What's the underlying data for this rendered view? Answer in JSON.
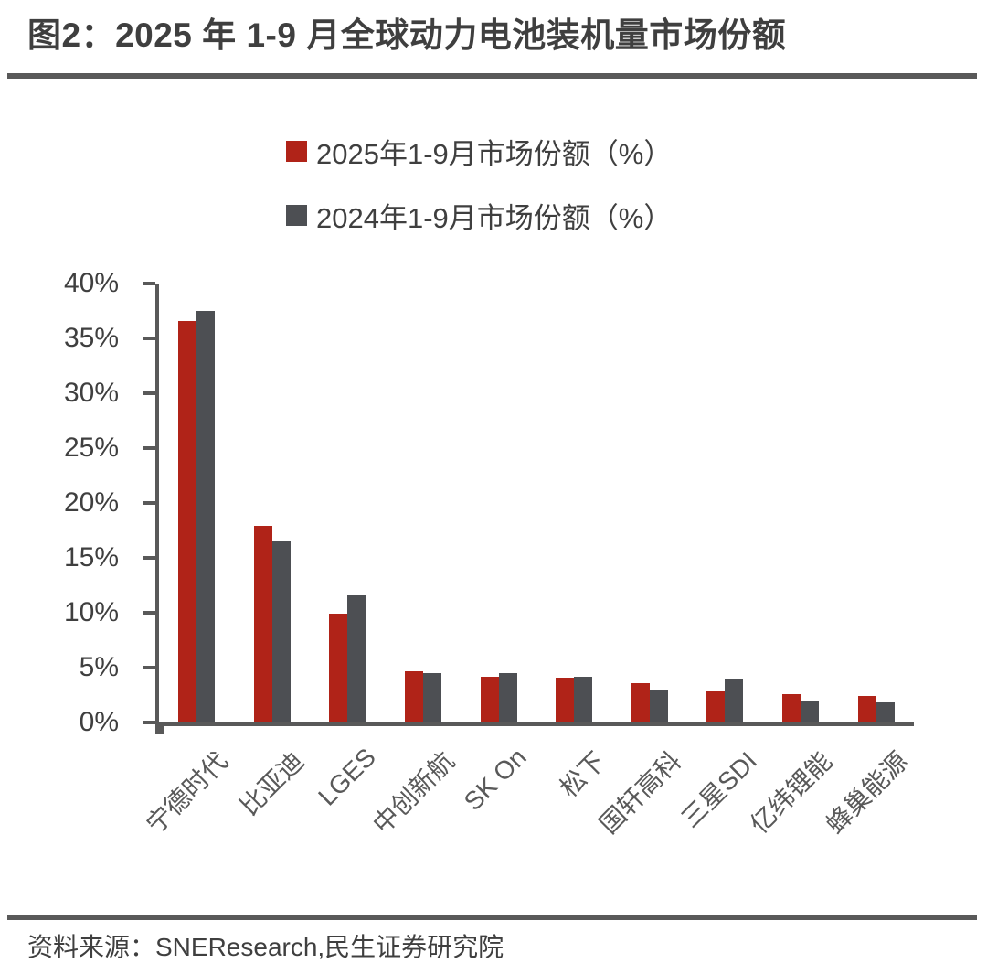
{
  "header": {
    "title": "图2：2025 年 1-9 月全球动力电池装机量市场份额"
  },
  "legend": [
    {
      "label": "2025年1-9月市场份额（%）",
      "color": "#b02318"
    },
    {
      "label": "2024年1-9月市场份额（%）",
      "color": "#4d4f53"
    }
  ],
  "footer": {
    "source": "资料来源：SNEResearch,民生证券研究院"
  },
  "colors": {
    "series_2025": "#b02318",
    "series_2024": "#4d4f53",
    "axis": "#595959",
    "text": "#3f3f3f"
  },
  "chart_data": {
    "type": "bar",
    "title": "图2：2025 年 1-9 月全球动力电池装机量市场份额",
    "categories": [
      "宁德时代",
      "比亚迪",
      "LGES",
      "中创新航",
      "SK On",
      "松下",
      "国轩高科",
      "三星SDI",
      "亿纬锂能",
      "蜂巢能源"
    ],
    "series": [
      {
        "name": "2025年1-9月市场份额（%）",
        "color": "#b02318",
        "values": [
          36.6,
          17.9,
          9.9,
          4.7,
          4.2,
          4.1,
          3.6,
          2.8,
          2.6,
          2.4
        ]
      },
      {
        "name": "2024年1-9月市场份额（%）",
        "color": "#4d4f53",
        "values": [
          37.5,
          16.5,
          11.6,
          4.5,
          4.5,
          4.2,
          2.9,
          4.0,
          2.0,
          1.8
        ]
      }
    ],
    "xlabel": "",
    "ylabel": "",
    "ylim": [
      0,
      40
    ],
    "ytick_step": 5,
    "ytick_labels": [
      "0%",
      "5%",
      "10%",
      "15%",
      "20%",
      "25%",
      "30%",
      "35%",
      "40%"
    ],
    "grid": false,
    "legend_position": "top-center",
    "bar_label_rotation_deg": -45
  }
}
